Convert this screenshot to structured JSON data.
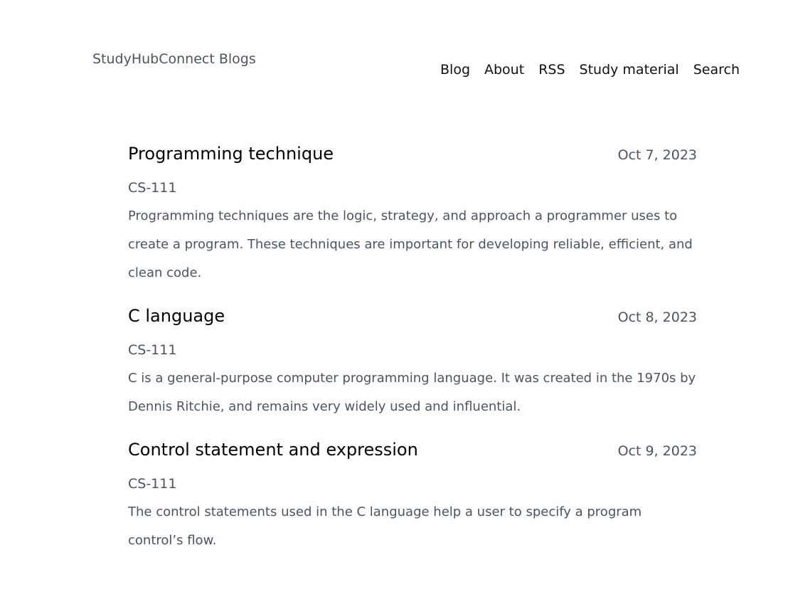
{
  "header": {
    "site_title": "StudyHubConnect Blogs",
    "nav": [
      "Blog",
      "About",
      "RSS",
      "Study material",
      "Search"
    ]
  },
  "posts": [
    {
      "title": "Programming technique",
      "date": "Oct 7, 2023",
      "tag": "CS-111",
      "summary": "Programming techniques are the logic, strategy, and approach a programmer uses to create a program. These techniques are important for developing reliable, efficient, and clean code."
    },
    {
      "title": "C language",
      "date": "Oct 8, 2023",
      "tag": "CS-111",
      "summary": "C is a general-purpose computer programming language. It was created in the 1970s by Dennis Ritchie, and remains very widely used and influential."
    },
    {
      "title": "Control statement and expression",
      "date": "Oct 9, 2023",
      "tag": "CS-111",
      "summary": "The control statements used in the C language help a user to specify a program control’s flow."
    }
  ]
}
